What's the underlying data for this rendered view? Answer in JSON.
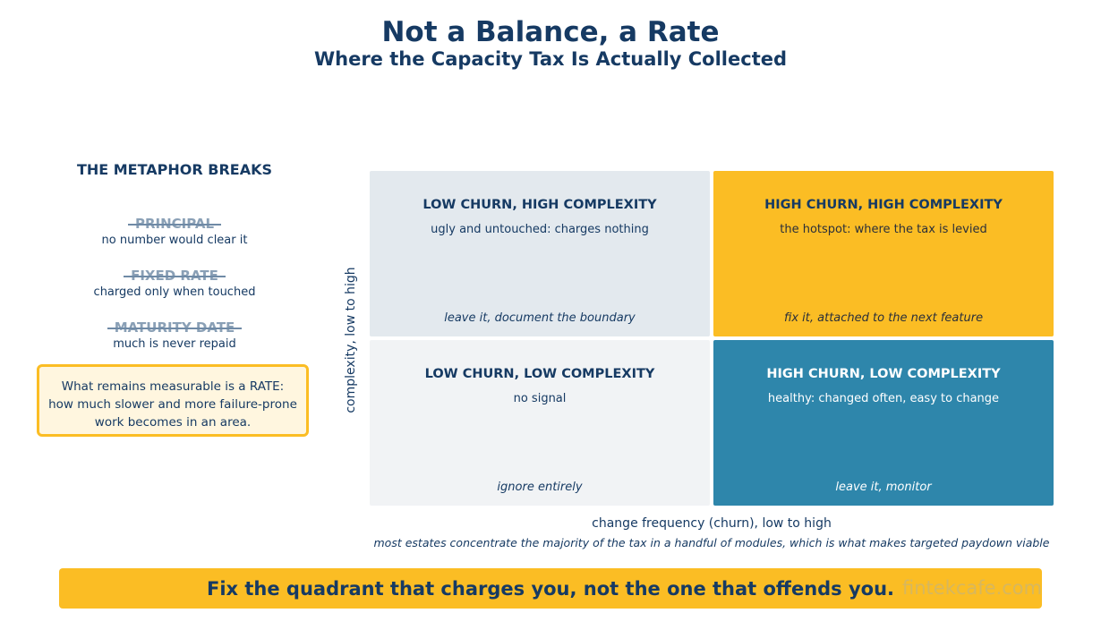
{
  "header": {
    "title": "Not a Balance, a Rate",
    "subtitle": "Where the Capacity Tax Is Actually Collected"
  },
  "sidebar": {
    "heading": "THE METAPHOR BREAKS",
    "terms": [
      {
        "name": "PRINCIPAL",
        "note": "no number would clear it"
      },
      {
        "name": "FIXED RATE",
        "note": "charged only when touched"
      },
      {
        "name": "MATURITY DATE",
        "note": "much is never repaid"
      }
    ],
    "callout": [
      "What remains measurable is a RATE:",
      "how much slower and more failure-prone",
      "work becomes in an area."
    ]
  },
  "matrix": {
    "y_axis_label": "complexity, low to high",
    "x_axis_label": "change frequency (churn), low to high",
    "footnote": "most estates concentrate the majority of the tax in a handful of modules, which is what makes targeted paydown viable",
    "quadrants": {
      "top_left": {
        "title": "LOW CHURN, HIGH COMPLEXITY",
        "desc": "ugly and untouched: charges nothing",
        "action": "leave it, document the boundary",
        "color": "#e3e9ee"
      },
      "top_right": {
        "title": "HIGH CHURN, HIGH COMPLEXITY",
        "desc": "the hotspot: where the tax is levied",
        "action": "fix it, attached to the next feature",
        "color": "#fbbd24"
      },
      "bottom_left": {
        "title": "LOW CHURN, LOW COMPLEXITY",
        "desc": "no signal",
        "action": "ignore entirely",
        "color": "#f1f3f5"
      },
      "bottom_right": {
        "title": "HIGH CHURN, LOW COMPLEXITY",
        "desc": "healthy: changed often, easy to change",
        "action": "leave it, monitor",
        "color": "#2e86ab"
      }
    }
  },
  "banner": {
    "text": "Fix the quadrant that charges you, not the one that offends you.",
    "watermark": "fintekcafe.com"
  },
  "colors": {
    "navy": "#163a63",
    "amber": "#fbbd24",
    "teal": "#2e86ab",
    "callout_bg": "#fff6df"
  }
}
